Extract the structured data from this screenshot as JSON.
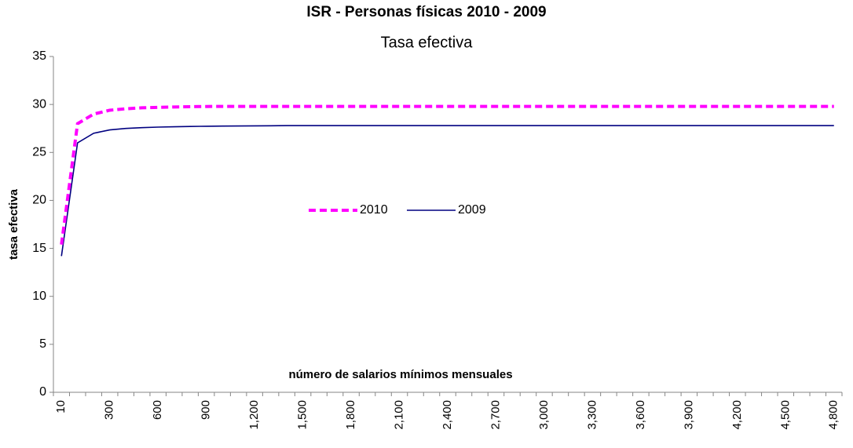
{
  "chart_data": {
    "type": "line",
    "title": "ISR - Personas físicas 2010 - 2009",
    "subtitle": "Tasa efectiva",
    "y_label": "tasa efectiva",
    "x_label": "número de salarios mínimos mensuales",
    "categories": [
      "10",
      null,
      null,
      "300",
      null,
      null,
      "600",
      null,
      null,
      "900",
      null,
      null,
      "1,200",
      null,
      null,
      "1,500",
      null,
      null,
      "1,800",
      null,
      null,
      "2,100",
      null,
      null,
      "2,400",
      null,
      null,
      "2,700",
      null,
      null,
      "3,000",
      null,
      null,
      "3,300",
      null,
      null,
      "3,600",
      null,
      null,
      "3,900",
      null,
      null,
      "4,200",
      null,
      null,
      "4,500",
      null,
      null,
      "4,800"
    ],
    "series": [
      {
        "name": "2010",
        "color": "#ff00ff",
        "dashed": true,
        "values": [
          15.4,
          28.0,
          29.0,
          29.4,
          29.55,
          29.65,
          29.7,
          29.74,
          29.77,
          29.79,
          29.8,
          29.8,
          29.8,
          29.8,
          29.8,
          29.8,
          29.8,
          29.8,
          29.8,
          29.8,
          29.8,
          29.8,
          29.8,
          29.8,
          29.8,
          29.8,
          29.8,
          29.8,
          29.8,
          29.8,
          29.8,
          29.8,
          29.8,
          29.8,
          29.8,
          29.8,
          29.8,
          29.8,
          29.8,
          29.8,
          29.8,
          29.8,
          29.8,
          29.8,
          29.8,
          29.8,
          29.8,
          29.8,
          29.8
        ]
      },
      {
        "name": "2009",
        "color": "#000080",
        "dashed": false,
        "values": [
          14.2,
          26.0,
          27.0,
          27.35,
          27.5,
          27.58,
          27.64,
          27.68,
          27.71,
          27.73,
          27.75,
          27.76,
          27.77,
          27.78,
          27.8,
          27.8,
          27.8,
          27.8,
          27.8,
          27.8,
          27.8,
          27.8,
          27.8,
          27.8,
          27.8,
          27.8,
          27.8,
          27.8,
          27.8,
          27.8,
          27.8,
          27.8,
          27.8,
          27.8,
          27.8,
          27.8,
          27.8,
          27.8,
          27.8,
          27.8,
          27.8,
          27.8,
          27.8,
          27.8,
          27.8,
          27.8,
          27.8,
          27.8,
          27.8
        ]
      }
    ],
    "ylim": [
      0,
      35
    ],
    "yticks": [
      0,
      5,
      10,
      15,
      20,
      25,
      30,
      35
    ],
    "grid": false,
    "legend": "center"
  }
}
